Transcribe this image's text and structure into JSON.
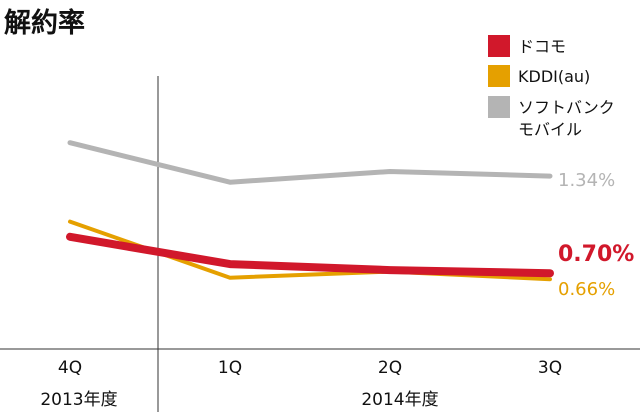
{
  "chart_data": {
    "type": "line",
    "title": "解約率",
    "categories": [
      "4Q",
      "1Q",
      "2Q",
      "3Q"
    ],
    "periods": [
      {
        "label": "2013年度",
        "categories": [
          "4Q"
        ]
      },
      {
        "label": "2014年度",
        "categories": [
          "1Q",
          "2Q",
          "3Q"
        ]
      }
    ],
    "series": [
      {
        "name": "ドコモ",
        "color": "#d1182b",
        "values": [
          0.94,
          0.76,
          0.72,
          0.7
        ],
        "end_label": "0.70%"
      },
      {
        "name": "KDDI(au)",
        "color": "#e5a000",
        "values": [
          1.04,
          0.67,
          0.71,
          0.66
        ],
        "end_label": "0.66%"
      },
      {
        "name": "ソフトバンク\nモバイル",
        "color": "#b4b4b4",
        "values": [
          1.56,
          1.3,
          1.37,
          1.34
        ],
        "end_label": "1.34%"
      }
    ],
    "ylim": [
      0.2,
      2.0
    ],
    "grid": false,
    "legend_position": "top-right"
  }
}
